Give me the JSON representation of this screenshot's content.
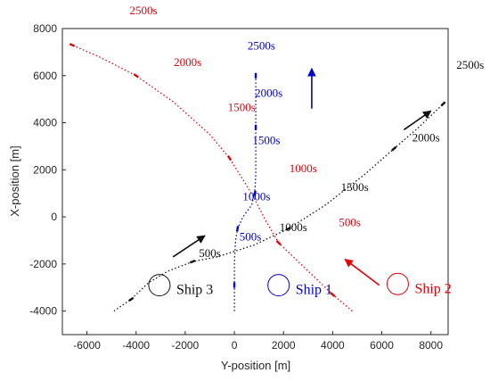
{
  "chart_data": {
    "type": "scatter",
    "title": "",
    "xlabel": "Y-position [m]",
    "ylabel": "X-position [m]",
    "xlim": [
      -7000,
      8700
    ],
    "ylim": [
      -5000,
      8000
    ],
    "xticks": [
      -6000,
      -4000,
      -2000,
      0,
      2000,
      4000,
      6000,
      8000
    ],
    "yticks": [
      -4000,
      -2000,
      0,
      2000,
      4000,
      6000,
      8000
    ],
    "grid": false,
    "series": [
      {
        "name": "Ship 1",
        "color": "#0000cc",
        "points": [
          [
            0,
            -4000
          ],
          [
            0,
            -2900
          ],
          [
            0,
            -1900
          ],
          [
            50,
            -1000
          ],
          [
            130,
            -500
          ],
          [
            350,
            0
          ],
          [
            700,
            500
          ],
          [
            830,
            1000
          ],
          [
            870,
            1800
          ],
          [
            870,
            2600
          ],
          [
            870,
            3800
          ],
          [
            870,
            5000
          ],
          [
            870,
            6000
          ]
        ],
        "time_labels": [
          {
            "text": "500s",
            "x": 650,
            "y": -1000
          },
          {
            "text": "1000s",
            "x": 900,
            "y": 700
          },
          {
            "text": "1500s",
            "x": 1300,
            "y": 3100
          },
          {
            "text": "2000s",
            "x": 1400,
            "y": 5100
          },
          {
            "text": "2500s",
            "x": 1100,
            "y": 7100
          }
        ],
        "marker": {
          "x": 1800,
          "y": -2900
        },
        "arrow": {
          "x": 3150,
          "from_y": 4600,
          "to_y": 6300
        }
      },
      {
        "name": "Ship 2",
        "color": "#e0000a",
        "points": [
          [
            4800,
            -4000
          ],
          [
            4000,
            -3300
          ],
          [
            3400,
            -2700
          ],
          [
            2500,
            -1800
          ],
          [
            1800,
            -1100
          ],
          [
            1300,
            -200
          ],
          [
            700,
            1000
          ],
          [
            -200,
            2500
          ],
          [
            -1000,
            3500
          ],
          [
            -2500,
            4900
          ],
          [
            -4000,
            6000
          ],
          [
            -5500,
            6800
          ],
          [
            -6600,
            7300
          ]
        ],
        "time_labels": [
          {
            "text": "500s",
            "x": 4700,
            "y": -400
          },
          {
            "text": "1000s",
            "x": 2800,
            "y": 1900
          },
          {
            "text": "1500s",
            "x": 300,
            "y": 4500
          },
          {
            "text": "2000s",
            "x": -1900,
            "y": 6400
          },
          {
            "text": "2500s",
            "x": -3700,
            "y": 8600
          }
        ],
        "marker": {
          "x": 6650,
          "y": -2850
        },
        "arrow": {
          "from_x": 5900,
          "from_y": -2900,
          "to_x": 4500,
          "to_y": -1800
        }
      },
      {
        "name": "Ship 3",
        "color": "#111111",
        "points": [
          [
            -4900,
            -4000
          ],
          [
            -4200,
            -3500
          ],
          [
            -3500,
            -2800
          ],
          [
            -2700,
            -2300
          ],
          [
            -1700,
            -1900
          ],
          [
            -700,
            -1700
          ],
          [
            800,
            -1200
          ],
          [
            2200,
            -500
          ],
          [
            3700,
            500
          ],
          [
            5300,
            1800
          ],
          [
            6500,
            2900
          ],
          [
            7500,
            3800
          ],
          [
            8500,
            4800
          ]
        ],
        "time_labels": [
          {
            "text": "500s",
            "x": -1000,
            "y": -1700
          },
          {
            "text": "1000s",
            "x": 2400,
            "y": -600
          },
          {
            "text": "1500s",
            "x": 4900,
            "y": 1100
          },
          {
            "text": "2000s",
            "x": 7800,
            "y": 3200
          },
          {
            "text": "2500s",
            "x": 9600,
            "y": 6300
          }
        ],
        "marker": {
          "x": -3050,
          "y": -2900
        },
        "arrow": {
          "from_x": -2500,
          "from_y": -1700,
          "to_x": -1200,
          "to_y": -800
        },
        "arrow2": {
          "from_x": 6900,
          "from_y": 3700,
          "to_x": 8000,
          "to_y": 4500
        }
      }
    ]
  }
}
